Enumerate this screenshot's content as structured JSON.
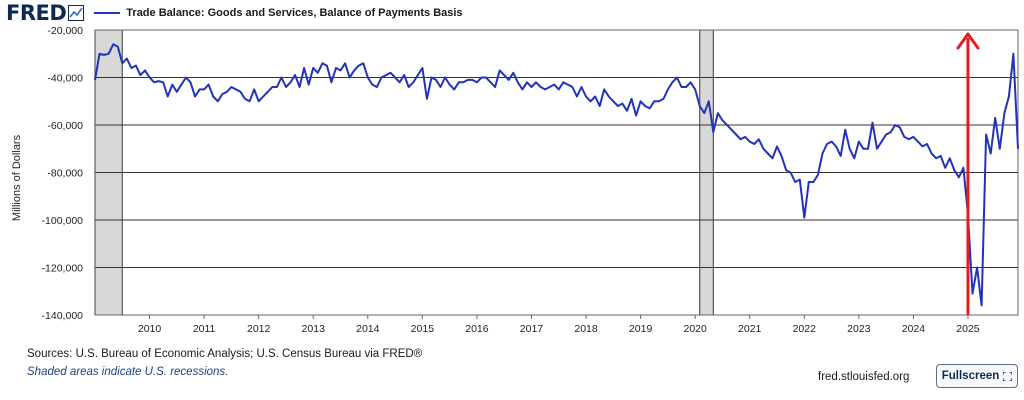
{
  "header": {
    "logo": "FRED",
    "legend": "Trade Balance: Goods and Services, Balance of Payments Basis",
    "series_color": "#2233bb"
  },
  "footer": {
    "sources": "Sources: U.S. Bureau of Economic Analysis; U.S. Census Bureau via FRED®",
    "note": "Shaded areas indicate U.S. recessions.",
    "site": "fred.stlouisfed.org",
    "fullscreen": "Fullscreen"
  },
  "chart_data": {
    "type": "line",
    "ylabel": "Millions of Dollars",
    "ylim": [
      -140000,
      -20000
    ],
    "xlim": [
      2009.0,
      2025.917
    ],
    "y_ticks": [
      -20000,
      -40000,
      -60000,
      -80000,
      -100000,
      -120000,
      -140000
    ],
    "y_tick_labels": [
      "-20,000",
      "-40,000",
      "-60,000",
      "-80,000",
      "-100,000",
      "-120,000",
      "-140,000"
    ],
    "x_ticks": [
      2010,
      2011,
      2012,
      2013,
      2014,
      2015,
      2016,
      2017,
      2018,
      2019,
      2020,
      2021,
      2022,
      2023,
      2024,
      2025
    ],
    "x_tick_labels": [
      "2010",
      "2011",
      "2012",
      "2013",
      "2014",
      "2015",
      "2016",
      "2017",
      "2018",
      "2019",
      "2020",
      "2021",
      "2022",
      "2023",
      "2024",
      "2025"
    ],
    "grid": true,
    "recessions": [
      [
        2009.0,
        2009.5
      ],
      [
        2020.083,
        2020.333
      ]
    ],
    "annotation": {
      "type": "arrow",
      "color": "#e02020",
      "x": 2025.0
    },
    "series": [
      {
        "color": "#2233bb",
        "x": [
          2009.0,
          2009.083,
          2009.167,
          2009.25,
          2009.333,
          2009.417,
          2009.5,
          2009.583,
          2009.667,
          2009.75,
          2009.833,
          2009.917,
          2010.0,
          2010.083,
          2010.167,
          2010.25,
          2010.333,
          2010.417,
          2010.5,
          2010.583,
          2010.667,
          2010.75,
          2010.833,
          2010.917,
          2011.0,
          2011.083,
          2011.167,
          2011.25,
          2011.333,
          2011.417,
          2011.5,
          2011.583,
          2011.667,
          2011.75,
          2011.833,
          2011.917,
          2012.0,
          2012.083,
          2012.167,
          2012.25,
          2012.333,
          2012.417,
          2012.5,
          2012.583,
          2012.667,
          2012.75,
          2012.833,
          2012.917,
          2013.0,
          2013.083,
          2013.167,
          2013.25,
          2013.333,
          2013.417,
          2013.5,
          2013.583,
          2013.667,
          2013.75,
          2013.833,
          2013.917,
          2014.0,
          2014.083,
          2014.167,
          2014.25,
          2014.333,
          2014.417,
          2014.5,
          2014.583,
          2014.667,
          2014.75,
          2014.833,
          2014.917,
          2015.0,
          2015.083,
          2015.167,
          2015.25,
          2015.333,
          2015.417,
          2015.5,
          2015.583,
          2015.667,
          2015.75,
          2015.833,
          2015.917,
          2016.0,
          2016.083,
          2016.167,
          2016.25,
          2016.333,
          2016.417,
          2016.5,
          2016.583,
          2016.667,
          2016.75,
          2016.833,
          2016.917,
          2017.0,
          2017.083,
          2017.167,
          2017.25,
          2017.333,
          2017.417,
          2017.5,
          2017.583,
          2017.667,
          2017.75,
          2017.833,
          2017.917,
          2018.0,
          2018.083,
          2018.167,
          2018.25,
          2018.333,
          2018.417,
          2018.5,
          2018.583,
          2018.667,
          2018.75,
          2018.833,
          2018.917,
          2019.0,
          2019.083,
          2019.167,
          2019.25,
          2019.333,
          2019.417,
          2019.5,
          2019.583,
          2019.667,
          2019.75,
          2019.833,
          2019.917,
          2020.0,
          2020.083,
          2020.167,
          2020.25,
          2020.333,
          2020.417,
          2020.5,
          2020.583,
          2020.667,
          2020.75,
          2020.833,
          2020.917,
          2021.0,
          2021.083,
          2021.167,
          2021.25,
          2021.333,
          2021.417,
          2021.5,
          2021.583,
          2021.667,
          2021.75,
          2021.833,
          2021.917,
          2022.0,
          2022.083,
          2022.167,
          2022.25,
          2022.333,
          2022.417,
          2022.5,
          2022.583,
          2022.667,
          2022.75,
          2022.833,
          2022.917,
          2023.0,
          2023.083,
          2023.167,
          2023.25,
          2023.333,
          2023.417,
          2023.5,
          2023.583,
          2023.667,
          2023.75,
          2023.833,
          2023.917,
          2024.0,
          2024.083,
          2024.167,
          2024.25,
          2024.333,
          2024.417,
          2024.5,
          2024.583,
          2024.667,
          2024.75,
          2024.833,
          2024.917,
          2025.0,
          2025.083,
          2025.167,
          2025.25,
          2025.333,
          2025.417,
          2025.5,
          2025.583,
          2025.667,
          2025.75,
          2025.833,
          2025.917
        ],
        "y": [
          -41000,
          -30000,
          -30500,
          -30000,
          -26000,
          -27000,
          -34000,
          -32000,
          -36000,
          -35000,
          -39000,
          -37000,
          -40000,
          -42000,
          -41500,
          -42000,
          -48000,
          -43000,
          -46000,
          -43000,
          -40000,
          -42000,
          -48000,
          -45000,
          -45000,
          -43000,
          -48000,
          -50000,
          -47000,
          -46000,
          -44000,
          -45000,
          -46000,
          -49000,
          -50000,
          -45000,
          -50000,
          -48000,
          -46000,
          -44000,
          -44000,
          -40000,
          -44000,
          -42000,
          -39000,
          -44000,
          -36000,
          -43000,
          -36000,
          -38000,
          -34000,
          -35000,
          -42000,
          -36000,
          -37000,
          -34000,
          -40000,
          -37000,
          -35000,
          -34000,
          -40000,
          -43000,
          -44000,
          -40000,
          -39000,
          -38000,
          -40000,
          -42000,
          -39000,
          -44000,
          -42000,
          -39000,
          -36000,
          -49000,
          -40000,
          -41000,
          -44000,
          -40000,
          -43000,
          -45000,
          -42000,
          -42000,
          -41000,
          -41000,
          -42000,
          -40000,
          -40000,
          -42000,
          -44000,
          -37000,
          -39000,
          -41000,
          -38000,
          -42000,
          -45000,
          -42000,
          -44000,
          -42000,
          -44000,
          -45000,
          -44000,
          -43000,
          -45000,
          -42000,
          -43000,
          -44000,
          -48000,
          -44000,
          -48000,
          -50000,
          -48000,
          -52000,
          -45000,
          -48000,
          -50000,
          -52000,
          -51000,
          -54000,
          -49000,
          -56000,
          -50000,
          -52000,
          -53000,
          -50000,
          -50000,
          -49000,
          -45000,
          -42000,
          -40000,
          -44000,
          -44000,
          -42000,
          -45000,
          -52000,
          -55000,
          -50000,
          -63000,
          -55000,
          -58000,
          -60000,
          -62000,
          -64000,
          -66000,
          -65000,
          -67000,
          -68000,
          -66000,
          -70000,
          -72000,
          -74000,
          -69000,
          -73000,
          -79000,
          -80000,
          -84000,
          -83000,
          -99000,
          -84000,
          -84000,
          -81000,
          -72000,
          -68000,
          -67000,
          -69000,
          -73000,
          -62000,
          -70000,
          -74000,
          -67000,
          -70000,
          -70000,
          -59000,
          -70000,
          -67000,
          -64000,
          -63000,
          -60000,
          -61000,
          -65000,
          -66000,
          -65000,
          -67000,
          -69000,
          -68000,
          -72000,
          -74000,
          -73000,
          -78000,
          -74000,
          -79000,
          -82000,
          -78000,
          -98000,
          -131000,
          -120000,
          -136000,
          -64000,
          -72000,
          -57000,
          -70000,
          -55000,
          -48000,
          -30000,
          -70000
        ]
      }
    ]
  }
}
